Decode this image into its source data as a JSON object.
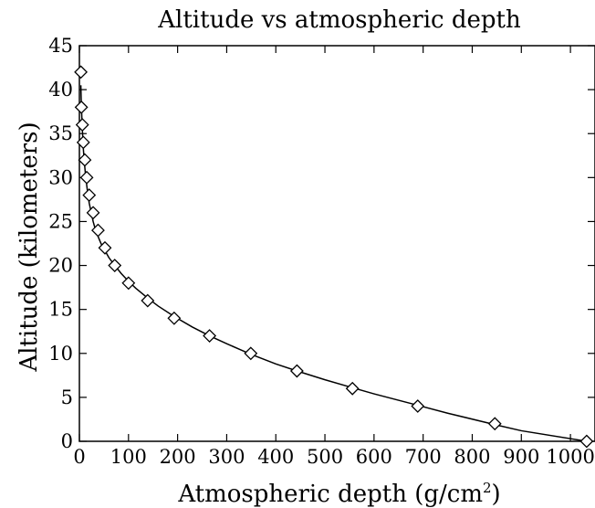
{
  "chart_data": {
    "type": "scatter",
    "title": "Altitude vs atmospheric depth",
    "xlabel_base": "Atmospheric depth (g/cm",
    "xlabel_sup": "2",
    "xlabel_close": ")",
    "ylabel": "Altitude (kilometers)",
    "xlim": [
      0,
      1050
    ],
    "ylim": [
      0,
      45
    ],
    "xticks": [
      0,
      100,
      200,
      300,
      400,
      500,
      600,
      700,
      800,
      900,
      1000
    ],
    "yticks": [
      0,
      5,
      10,
      15,
      20,
      25,
      30,
      35,
      40,
      45
    ],
    "grid": false,
    "series": [
      {
        "marker": "diamond",
        "x": [
          1033,
          846,
          689,
          556,
          443,
          349,
          265,
          193,
          139,
          100,
          72,
          52,
          38,
          28,
          20,
          15,
          11,
          8,
          6,
          4,
          3
        ],
        "y": [
          0,
          2,
          4,
          6,
          8,
          10,
          12,
          14,
          16,
          18,
          20,
          22,
          24,
          26,
          28,
          30,
          32,
          34,
          36,
          38,
          42
        ]
      }
    ],
    "fit": {
      "x": [
        1033,
        900,
        846,
        750,
        689,
        600,
        556,
        500,
        443,
        400,
        349,
        300,
        265,
        230,
        193,
        160,
        139,
        115,
        100,
        85,
        72,
        60,
        52,
        44,
        38,
        32,
        28,
        23,
        20,
        17,
        15,
        12,
        10,
        8,
        6,
        5,
        4,
        3.5,
        3
      ],
      "y": [
        0,
        1.2,
        1.9,
        3.2,
        4.1,
        5.4,
        6.1,
        7.0,
        8.0,
        8.8,
        9.9,
        11.1,
        12.0,
        13.0,
        14.2,
        15.4,
        16.3,
        17.4,
        18.2,
        19.1,
        20.0,
        20.9,
        21.7,
        22.5,
        23.3,
        24.2,
        25.0,
        26.3,
        27.1,
        28.2,
        29.1,
        30.6,
        31.8,
        33.3,
        35.5,
        36.8,
        38.3,
        39.3,
        40.5
      ]
    }
  }
}
